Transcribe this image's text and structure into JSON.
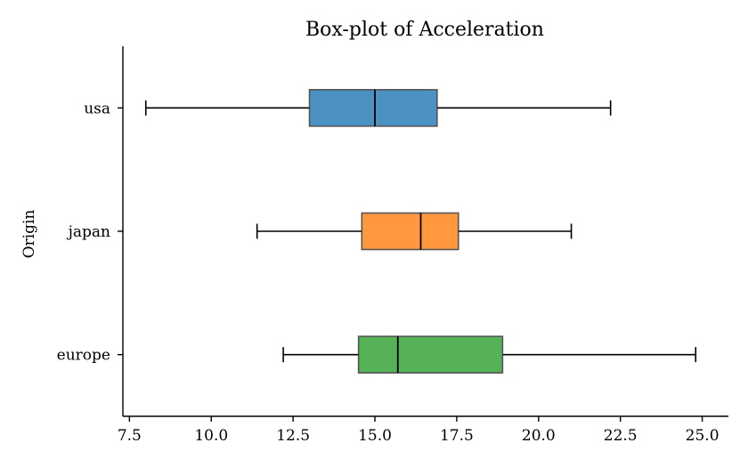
{
  "chart_data": {
    "type": "boxplot",
    "orientation": "horizontal",
    "title": "Box-plot of Acceleration",
    "xlabel": "",
    "ylabel": "Origin",
    "xlim": [
      7.3,
      25.8
    ],
    "xticks": [
      {
        "value": 7.5,
        "label": "7.5"
      },
      {
        "value": 10.0,
        "label": "10.0"
      },
      {
        "value": 12.5,
        "label": "12.5"
      },
      {
        "value": 15.0,
        "label": "15.0"
      },
      {
        "value": 17.5,
        "label": "17.5"
      },
      {
        "value": 20.0,
        "label": "20.0"
      },
      {
        "value": 22.5,
        "label": "22.5"
      },
      {
        "value": 25.0,
        "label": "25.0"
      }
    ],
    "categories": [
      "usa",
      "japan",
      "europe"
    ],
    "series": [
      {
        "category": "usa",
        "color": "#1f77b4",
        "whisker_low": 8.0,
        "q1": 13.0,
        "median": 15.0,
        "q3": 16.9,
        "whisker_high": 22.2
      },
      {
        "category": "japan",
        "color": "#ff7f0e",
        "whisker_low": 11.4,
        "q1": 14.6,
        "median": 16.4,
        "q3": 17.55,
        "whisker_high": 21.0
      },
      {
        "category": "europe",
        "color": "#2ca02c",
        "whisker_low": 12.2,
        "q1": 14.5,
        "median": 15.7,
        "q3": 18.9,
        "whisker_high": 24.8
      }
    ],
    "grid": false,
    "legend": "none"
  }
}
